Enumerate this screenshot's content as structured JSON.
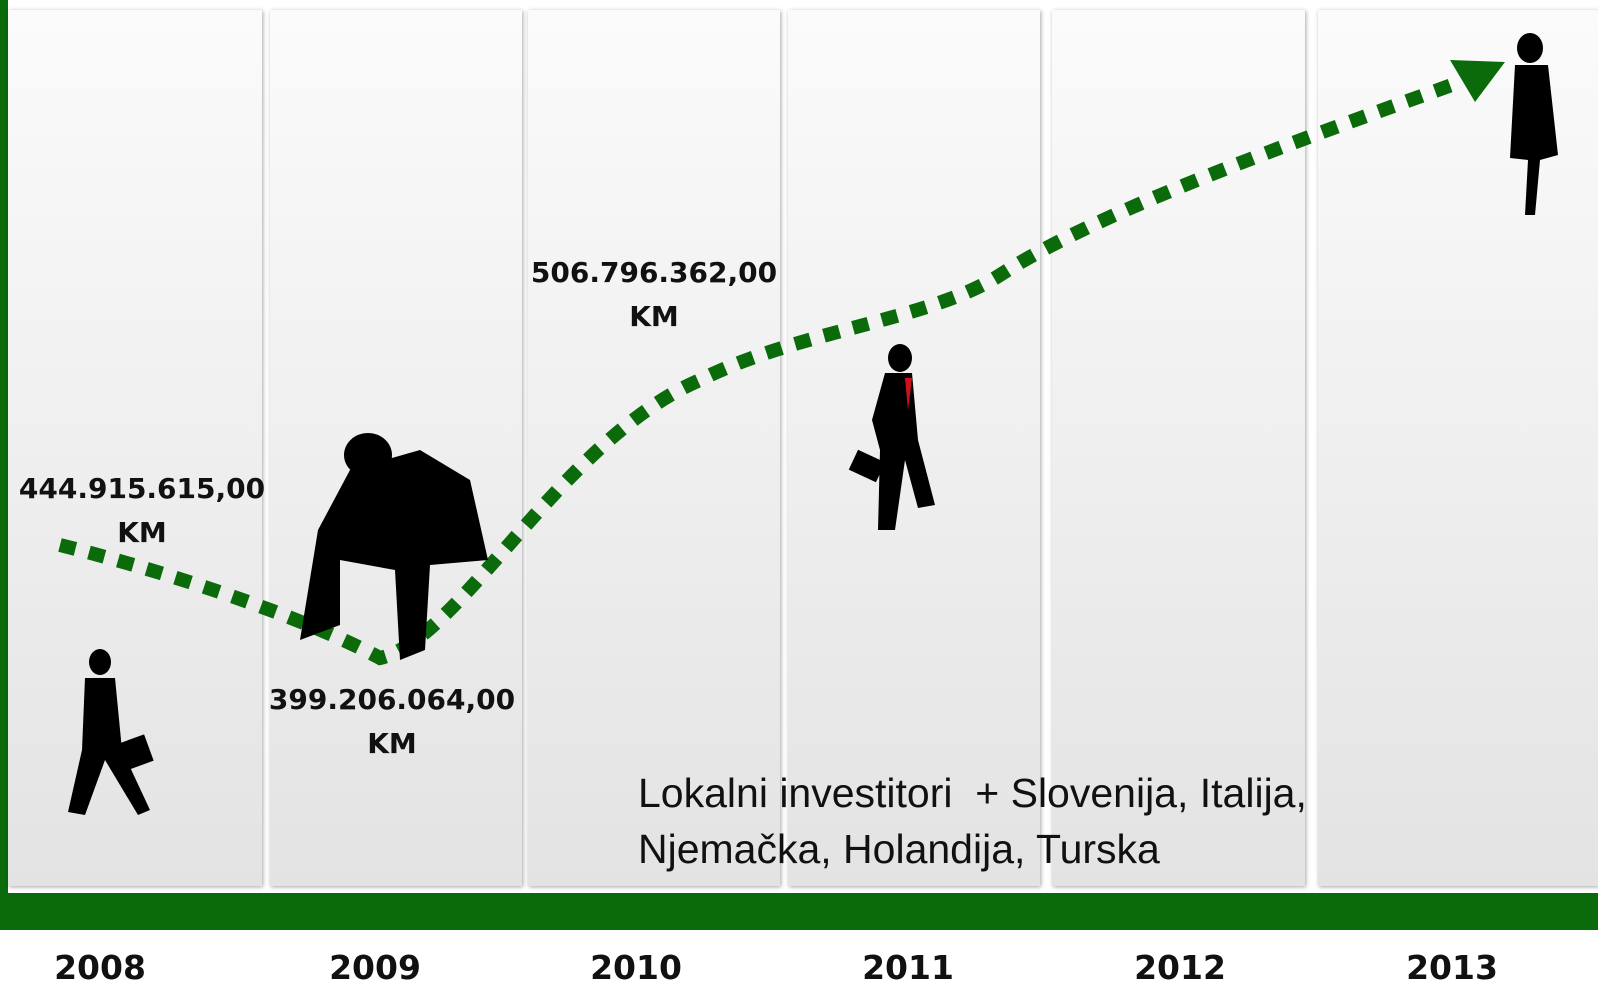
{
  "years": [
    "2008",
    "2009",
    "2010",
    "2011",
    "2012",
    "2013"
  ],
  "amounts": [
    {
      "value": "444.915.615,00",
      "unit": "KM"
    },
    {
      "value": "399.206.064,00",
      "unit": "KM"
    },
    {
      "value": "506.796.362,00",
      "unit": "KM"
    }
  ],
  "note": [
    "Lokalni investitori  + Slovenija, Italija,",
    "Njemačka, Holandija, Turska"
  ]
}
